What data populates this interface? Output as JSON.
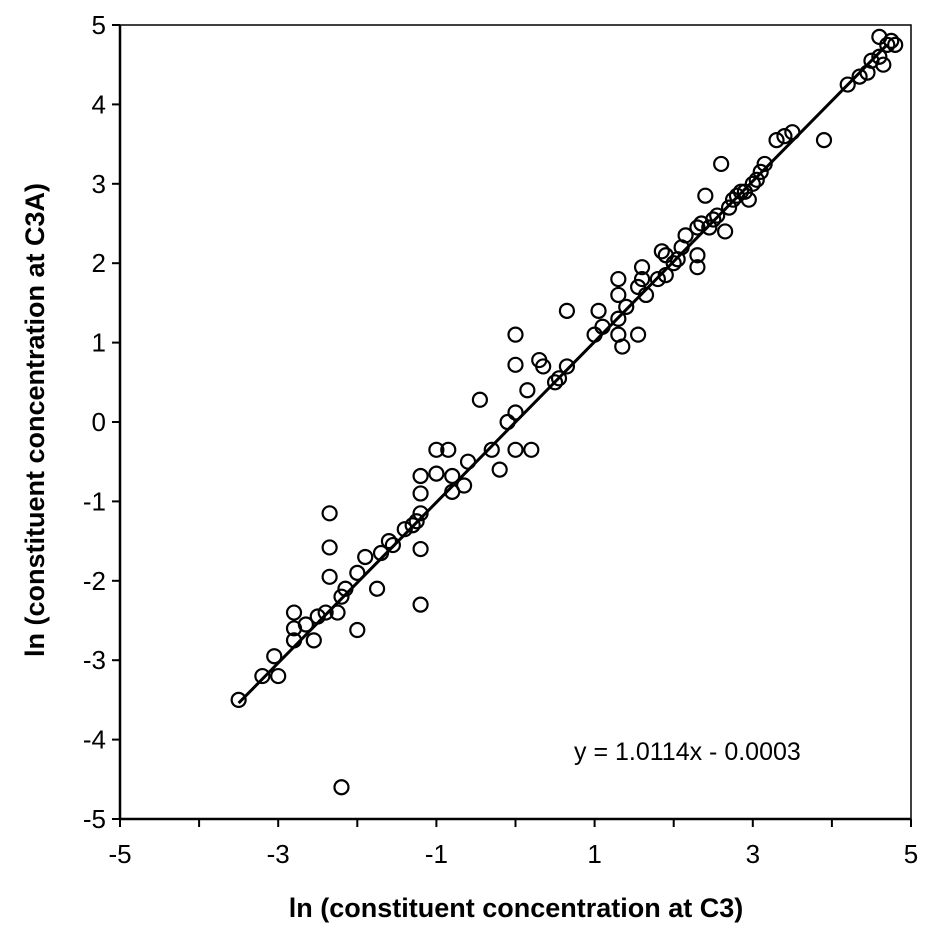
{
  "chart_data": {
    "type": "scatter",
    "xlabel": "ln (constituent concentration at C3)",
    "ylabel": "ln (constituent concentration at C3A)",
    "xlim": [
      -5,
      5
    ],
    "ylim": [
      -5,
      5
    ],
    "x_ticks": [
      -5,
      -3,
      -1,
      1,
      3,
      5
    ],
    "y_ticks": [
      5,
      4,
      3,
      2,
      1,
      0,
      -1,
      -2,
      -3,
      -4,
      -5
    ],
    "grid": false,
    "annotation": "y = 1.0114x - 0.0003",
    "trendline": {
      "slope": 1.0114,
      "intercept": -0.0003,
      "x_range": [
        -3.5,
        4.7
      ]
    },
    "points": [
      [
        -3.5,
        -3.5
      ],
      [
        -3.2,
        -3.2
      ],
      [
        -3.05,
        -2.95
      ],
      [
        -3.0,
        -3.2
      ],
      [
        -2.8,
        -2.75
      ],
      [
        -2.8,
        -2.6
      ],
      [
        -2.8,
        -2.4
      ],
      [
        -2.65,
        -2.55
      ],
      [
        -2.55,
        -2.75
      ],
      [
        -2.5,
        -2.45
      ],
      [
        -2.4,
        -2.4
      ],
      [
        -2.35,
        -1.95
      ],
      [
        -2.35,
        -1.58
      ],
      [
        -2.35,
        -1.15
      ],
      [
        -2.25,
        -2.4
      ],
      [
        -2.2,
        -2.2
      ],
      [
        -2.15,
        -2.1
      ],
      [
        -2.2,
        -4.6
      ],
      [
        -2.0,
        -2.62
      ],
      [
        -2.0,
        -1.9
      ],
      [
        -1.9,
        -1.7
      ],
      [
        -1.75,
        -2.1
      ],
      [
        -1.7,
        -1.65
      ],
      [
        -1.6,
        -1.5
      ],
      [
        -1.55,
        -1.55
      ],
      [
        -1.4,
        -1.35
      ],
      [
        -1.3,
        -1.3
      ],
      [
        -1.25,
        -1.25
      ],
      [
        -1.2,
        -1.15
      ],
      [
        -1.2,
        -2.3
      ],
      [
        -1.2,
        -1.6
      ],
      [
        -1.2,
        -0.9
      ],
      [
        -1.2,
        -0.68
      ],
      [
        -1.0,
        -0.65
      ],
      [
        -1.0,
        -0.35
      ],
      [
        -0.85,
        -0.35
      ],
      [
        -0.8,
        -0.68
      ],
      [
        -0.8,
        -0.88
      ],
      [
        -0.65,
        -0.8
      ],
      [
        -0.6,
        -0.5
      ],
      [
        -0.45,
        0.28
      ],
      [
        -0.3,
        -0.35
      ],
      [
        -0.2,
        -0.6
      ],
      [
        -0.1,
        0.0
      ],
      [
        0.0,
        -0.35
      ],
      [
        0.0,
        0.12
      ],
      [
        0.0,
        0.72
      ],
      [
        0.0,
        1.1
      ],
      [
        0.15,
        0.4
      ],
      [
        0.2,
        -0.35
      ],
      [
        0.3,
        0.78
      ],
      [
        0.35,
        0.7
      ],
      [
        0.5,
        0.5
      ],
      [
        0.55,
        0.55
      ],
      [
        0.65,
        0.7
      ],
      [
        0.65,
        1.4
      ],
      [
        1.0,
        1.1
      ],
      [
        1.05,
        1.4
      ],
      [
        1.1,
        1.2
      ],
      [
        1.3,
        1.3
      ],
      [
        1.3,
        1.6
      ],
      [
        1.3,
        1.8
      ],
      [
        1.3,
        1.1
      ],
      [
        1.35,
        0.95
      ],
      [
        1.4,
        1.45
      ],
      [
        1.55,
        1.1
      ],
      [
        1.55,
        1.7
      ],
      [
        1.6,
        1.8
      ],
      [
        1.6,
        1.95
      ],
      [
        1.65,
        1.6
      ],
      [
        1.8,
        1.8
      ],
      [
        1.85,
        2.15
      ],
      [
        1.9,
        2.1
      ],
      [
        1.9,
        1.85
      ],
      [
        2.0,
        2.0
      ],
      [
        2.05,
        2.05
      ],
      [
        2.1,
        2.2
      ],
      [
        2.15,
        2.35
      ],
      [
        2.3,
        1.95
      ],
      [
        2.3,
        2.1
      ],
      [
        2.3,
        2.45
      ],
      [
        2.35,
        2.5
      ],
      [
        2.4,
        2.85
      ],
      [
        2.45,
        2.45
      ],
      [
        2.5,
        2.55
      ],
      [
        2.55,
        2.6
      ],
      [
        2.6,
        3.25
      ],
      [
        2.65,
        2.4
      ],
      [
        2.7,
        2.7
      ],
      [
        2.75,
        2.8
      ],
      [
        2.8,
        2.85
      ],
      [
        2.85,
        2.9
      ],
      [
        2.9,
        2.9
      ],
      [
        2.95,
        2.8
      ],
      [
        3.0,
        3.0
      ],
      [
        3.05,
        3.05
      ],
      [
        3.1,
        3.15
      ],
      [
        3.15,
        3.25
      ],
      [
        3.3,
        3.55
      ],
      [
        3.4,
        3.6
      ],
      [
        3.5,
        3.65
      ],
      [
        3.9,
        3.55
      ],
      [
        4.2,
        4.25
      ],
      [
        4.35,
        4.35
      ],
      [
        4.45,
        4.4
      ],
      [
        4.5,
        4.55
      ],
      [
        4.6,
        4.6
      ],
      [
        4.6,
        4.85
      ],
      [
        4.65,
        4.5
      ],
      [
        4.7,
        4.75
      ],
      [
        4.75,
        4.8
      ],
      [
        4.8,
        4.75
      ]
    ]
  }
}
